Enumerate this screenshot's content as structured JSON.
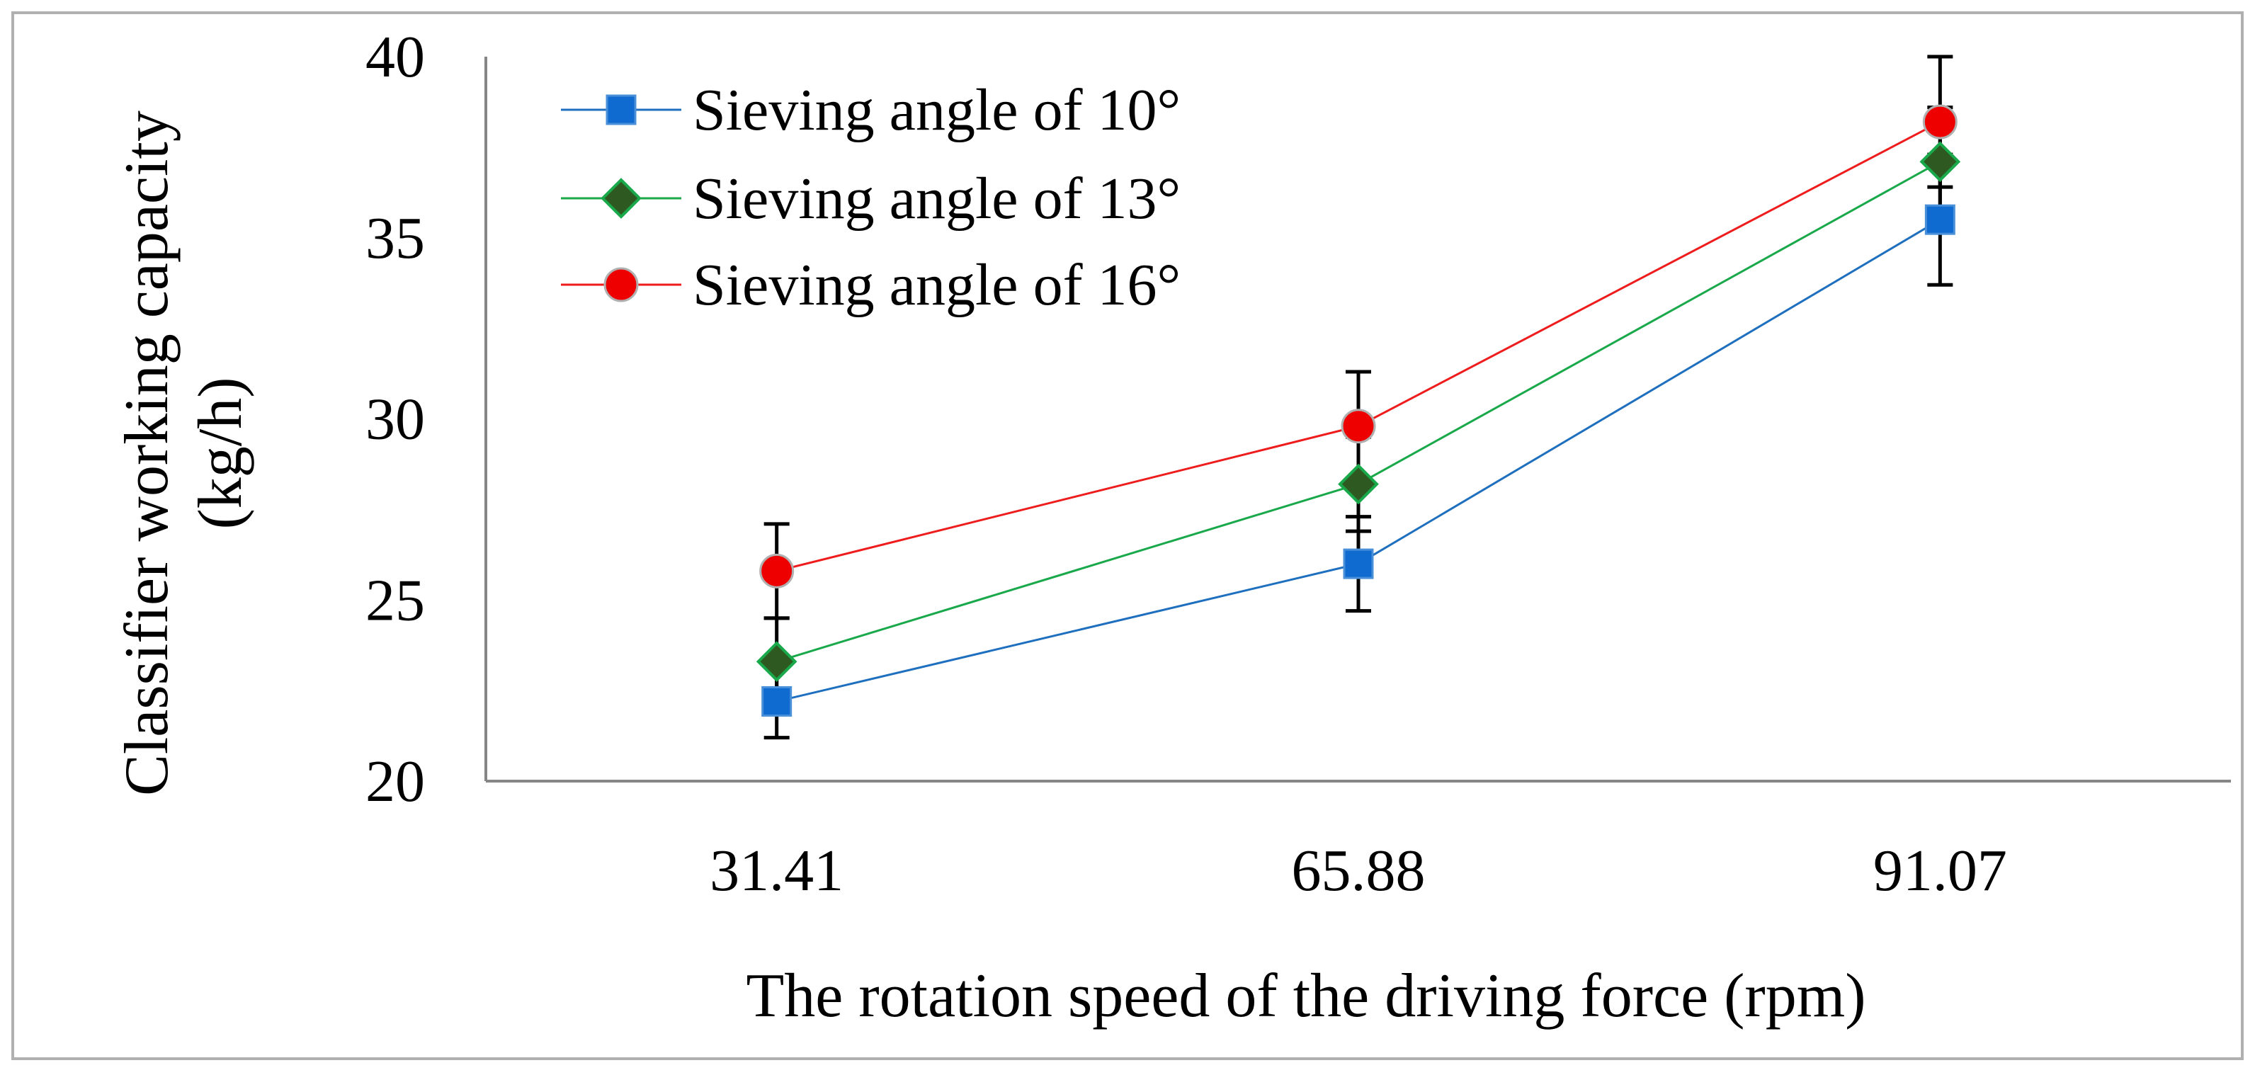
{
  "chart_data": {
    "type": "line",
    "title": "",
    "xlabel": "The rotation speed of the driving force (rpm)",
    "ylabel_line1": "Classifier working capacity",
    "ylabel_line2": "(kg/h)",
    "categories": [
      "31.41",
      "65.88",
      "91.07"
    ],
    "ylim": [
      20,
      40
    ],
    "yticks": [
      20,
      25,
      30,
      35,
      40
    ],
    "ytick_labels": [
      "20",
      "25",
      "30",
      "35",
      "40"
    ],
    "grid": false,
    "legend_position": "top-left",
    "series": [
      {
        "name": "Sieving angle of 10°",
        "values": [
          22.2,
          26.0,
          35.5
        ],
        "errors": [
          1.0,
          1.3,
          1.8
        ],
        "color": "#1f6fbf",
        "marker_fill": "#0f6bd0",
        "marker": "square"
      },
      {
        "name": "Sieving angle of 13°",
        "values": [
          23.3,
          28.2,
          37.1
        ],
        "errors": [
          1.2,
          1.3,
          1.5
        ],
        "color": "#19a84a",
        "marker_fill": "#2e5a22",
        "marker": "diamond"
      },
      {
        "name": "Sieving angle of 16°",
        "values": [
          25.8,
          29.8,
          38.2
        ],
        "errors": [
          1.3,
          1.5,
          1.8
        ],
        "color": "#ee1c1c",
        "marker_fill": "#ee0000",
        "marker": "circle"
      }
    ]
  }
}
